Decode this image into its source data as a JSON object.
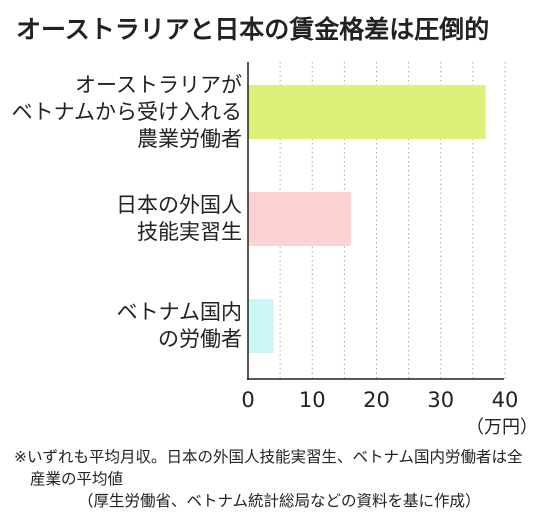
{
  "chart_data": {
    "type": "bar",
    "orientation": "horizontal",
    "title": "オーストラリアと日本の賃金格差は圧倒的",
    "categories": [
      "オーストラリアが\nベトナムから受け入れる\n農業労働者",
      "日本の外国人\n技能実習生",
      "ベトナム国内\nの労働者"
    ],
    "values": [
      37,
      16,
      4
    ],
    "bar_colors": [
      "#dff07a",
      "#ffd2d2",
      "#ccf6f8"
    ],
    "xlim": [
      0,
      40
    ],
    "xticks": [
      "0",
      "10",
      "20",
      "30",
      "40"
    ],
    "xunit": "（万円）",
    "grid": "vertical dotted"
  },
  "notes": {
    "note1": "※いずれも平均月収。日本の外国人技能実習生、ベトナム国内労働者は全産業の平均値",
    "source": "（厚生労働省、ベトナム統計総局などの資料を基に作成）"
  }
}
